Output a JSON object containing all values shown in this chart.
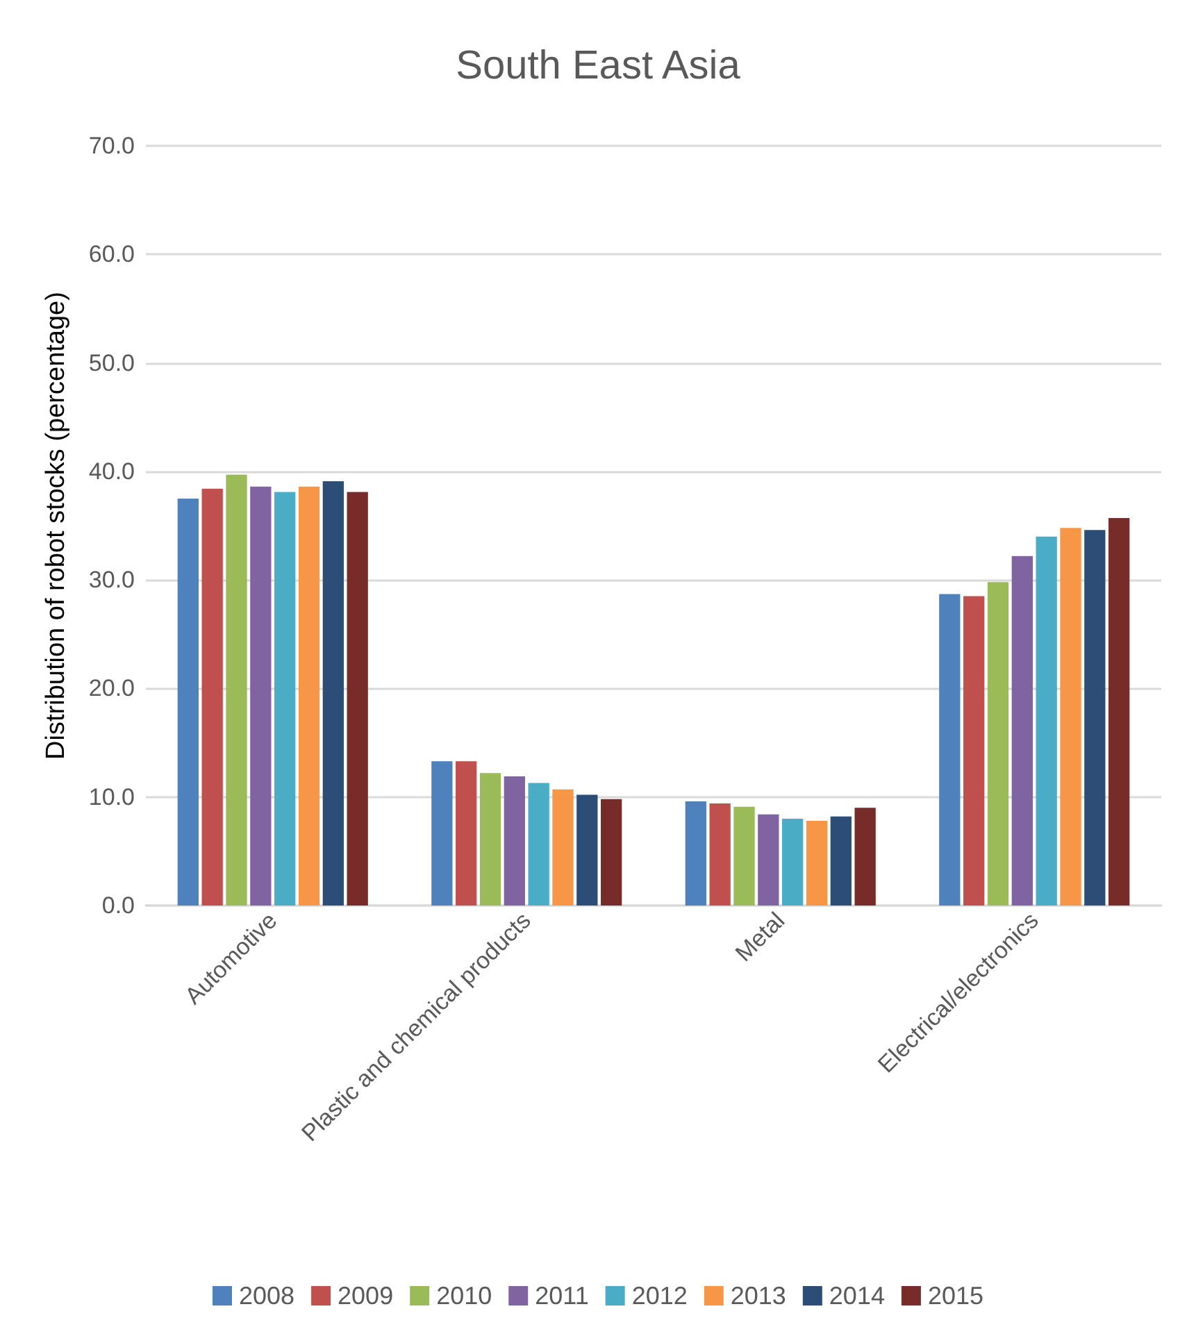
{
  "chart_data": {
    "type": "bar",
    "title": "South East Asia",
    "ylabel": "Distribution of robot stocks (percentage)",
    "categories": [
      "Automotive",
      "Plastic and chemical products",
      "Metal",
      "Electrical/electronics"
    ],
    "series": [
      {
        "name": "2008",
        "color": "#4f81bd",
        "values": [
          37.5,
          13.3,
          9.6,
          28.7
        ]
      },
      {
        "name": "2009",
        "color": "#c0504d",
        "values": [
          38.4,
          13.3,
          9.4,
          28.5
        ]
      },
      {
        "name": "2010",
        "color": "#9bbb59",
        "values": [
          39.7,
          12.2,
          9.1,
          29.8
        ]
      },
      {
        "name": "2011",
        "color": "#8064a2",
        "values": [
          38.6,
          11.9,
          8.4,
          32.2
        ]
      },
      {
        "name": "2012",
        "color": "#4bacc6",
        "values": [
          38.1,
          11.3,
          8.0,
          34.0
        ]
      },
      {
        "name": "2013",
        "color": "#f79646",
        "values": [
          38.6,
          10.7,
          7.8,
          34.8
        ]
      },
      {
        "name": "2014",
        "color": "#2c4d75",
        "values": [
          39.1,
          10.2,
          8.2,
          34.6
        ]
      },
      {
        "name": "2015",
        "color": "#772c2a",
        "values": [
          38.1,
          9.8,
          9.0,
          35.7
        ]
      }
    ],
    "ylim": [
      0,
      70
    ],
    "yticks": [
      {
        "value": 0,
        "label": "0.0"
      },
      {
        "value": 10,
        "label": "10.0"
      },
      {
        "value": 20,
        "label": "20.0"
      },
      {
        "value": 30,
        "label": "30.0"
      },
      {
        "value": 40,
        "label": "40.0"
      },
      {
        "value": 50,
        "label": "50.0"
      },
      {
        "value": 60,
        "label": "60.0"
      },
      {
        "value": 70,
        "label": "70.0"
      }
    ],
    "grid": "y",
    "legend": "bottom"
  }
}
